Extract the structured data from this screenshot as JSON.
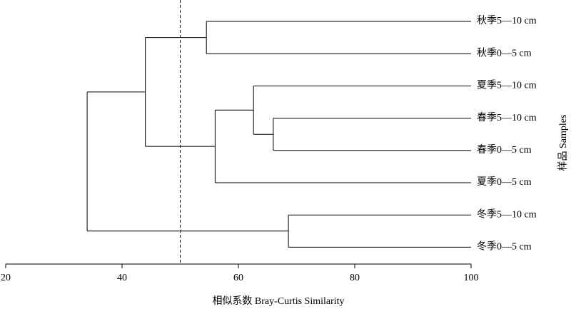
{
  "chart_data": {
    "type": "dendrogram",
    "x_label": "相似系数 Bray-Curtis Similarity",
    "y_label": "样品 Samples",
    "xlim": [
      20,
      100
    ],
    "xticks": [
      20,
      40,
      60,
      80,
      100
    ],
    "threshold": 50,
    "color": "#000000",
    "tree": {
      "value": 34,
      "children": [
        {
          "value": 44,
          "children": [
            {
              "value": 54.5,
              "children": [
                "秋季5—10 cm",
                "秋季0—5 cm"
              ]
            },
            {
              "value": 56,
              "children": [
                {
                  "value": 62.6,
                  "children": [
                    "夏季5—10 cm",
                    {
                      "value": 66,
                      "children": [
                        "春季5—10 cm",
                        "春季0—5 cm"
                      ]
                    }
                  ]
                },
                "夏季0—5 cm"
              ]
            }
          ]
        },
        {
          "value": 68.6,
          "children": [
            "冬季5—10 cm",
            "冬季0—5 cm"
          ]
        }
      ]
    }
  }
}
